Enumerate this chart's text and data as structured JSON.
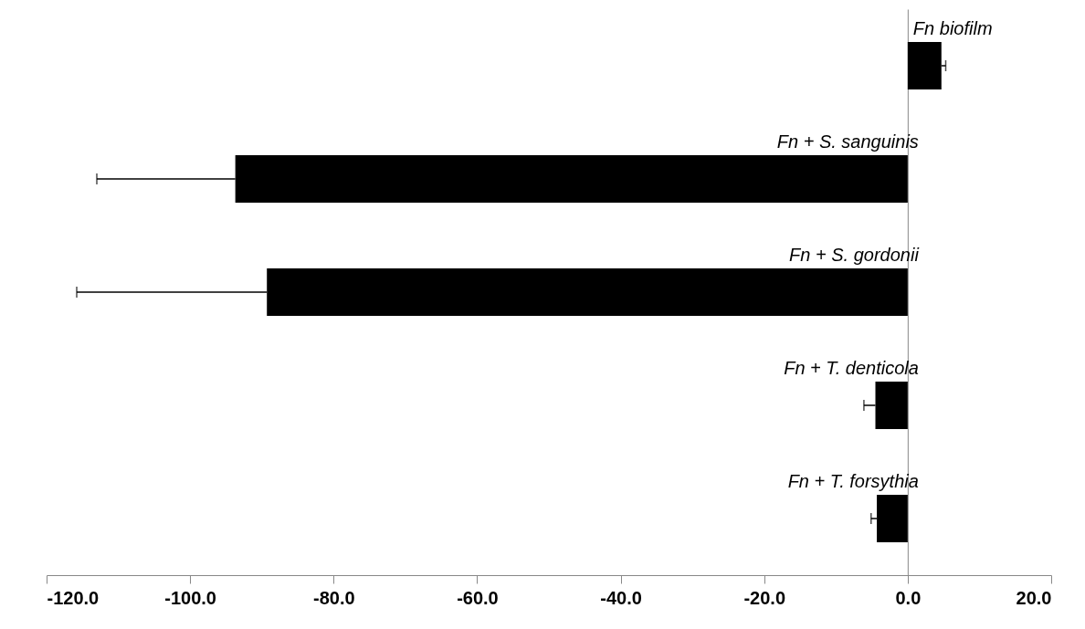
{
  "chart_data": {
    "type": "bar",
    "orientation": "horizontal",
    "categories": [
      "Fn biofilm",
      "Fn + S. sanguinis",
      "Fn + S. gordonii",
      "Fn + T. denticola",
      "Fn + T. forsythia"
    ],
    "values": [
      4.7,
      -93.7,
      -89.3,
      -4.5,
      -4.3
    ],
    "errors": [
      [
        4.7,
        5.3
      ],
      [
        -113.0,
        -93.7
      ],
      [
        -115.8,
        -89.3
      ],
      [
        -6.1,
        -4.5
      ],
      [
        -5.1,
        -4.3
      ]
    ],
    "colors": [
      "#000000",
      "#000000",
      "#000000",
      "#000000",
      "#000000"
    ],
    "xlim": [
      -120,
      20
    ],
    "xticks": [
      {
        "value": -120,
        "label": "-120.0"
      },
      {
        "value": -100,
        "label": "-100.0"
      },
      {
        "value": -80,
        "label": "-80.0"
      },
      {
        "value": -60,
        "label": "-60.0"
      },
      {
        "value": -40,
        "label": "-40.0"
      },
      {
        "value": -20,
        "label": "-20.0"
      },
      {
        "value": 0,
        "label": "0.0"
      },
      {
        "value": 20,
        "label": "20.0"
      }
    ],
    "tick_labels": "x",
    "grid": false
  }
}
